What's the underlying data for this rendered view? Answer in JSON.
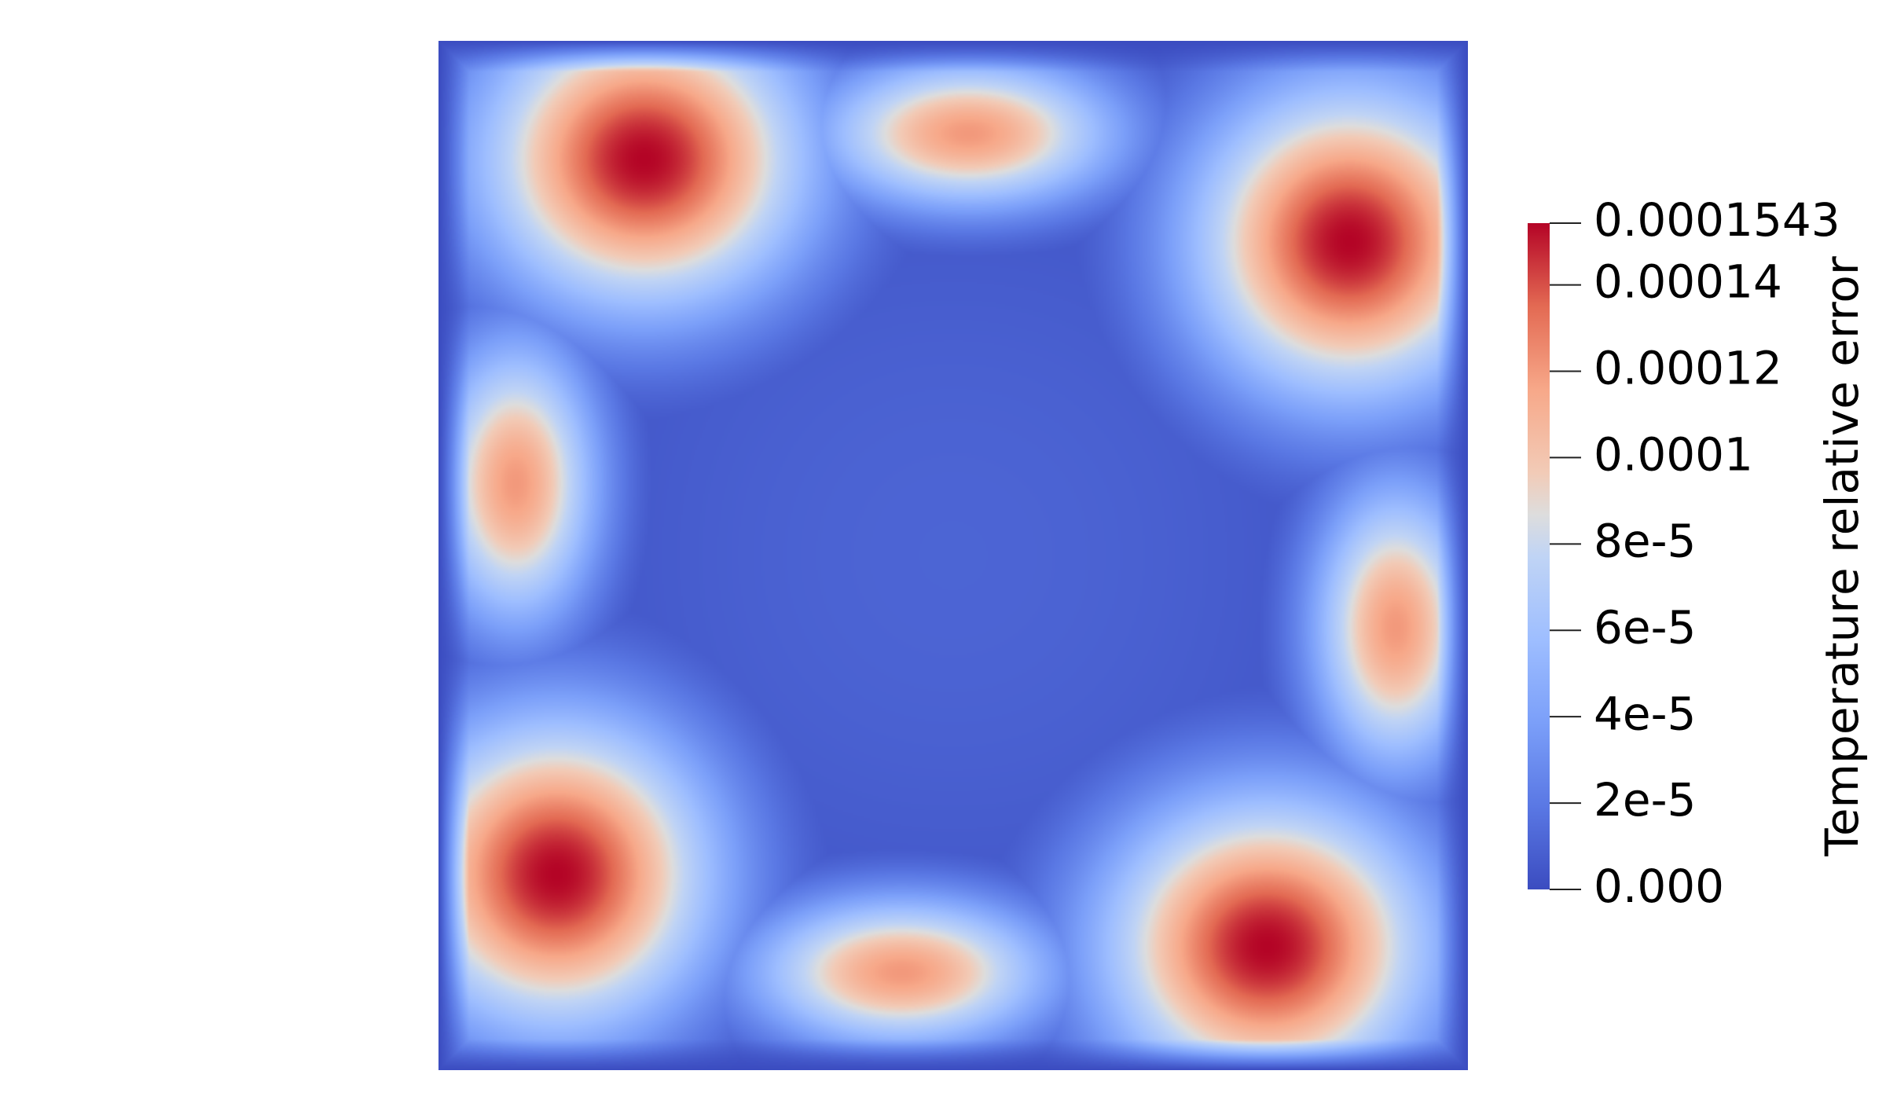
{
  "chart_data": {
    "type": "heatmap",
    "title": "",
    "xlabel": "",
    "ylabel": "",
    "field_name": "Temperature relative error",
    "color_range": [
      0.0,
      0.0001543
    ],
    "colormap": "Cool to Warm",
    "colors": {
      "low": "#3b4cc0",
      "mid": "#dddddd",
      "high": "#b40426"
    },
    "colorbar": {
      "placement": "right",
      "orientation": "vertical",
      "ticks": [
        {
          "value": 0.0,
          "label": "0.000"
        },
        {
          "value": 2e-05,
          "label": "2e-5"
        },
        {
          "value": 4e-05,
          "label": "4e-5"
        },
        {
          "value": 6e-05,
          "label": "6e-5"
        },
        {
          "value": 8e-05,
          "label": "8e-5"
        },
        {
          "value": 0.0001,
          "label": "0.0001"
        },
        {
          "value": 0.00012,
          "label": "0.00012"
        },
        {
          "value": 0.00014,
          "label": "0.00014"
        },
        {
          "value": 0.0001543,
          "label": "0.0001543"
        }
      ]
    }
  }
}
